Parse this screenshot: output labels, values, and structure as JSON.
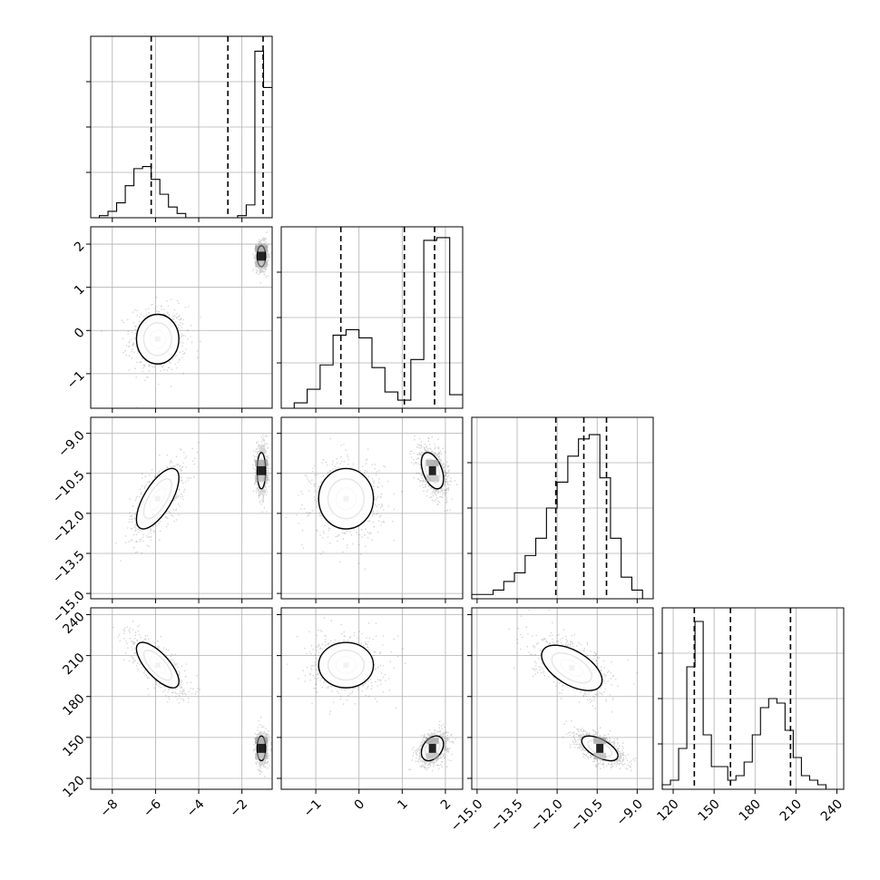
{
  "chart_data": {
    "type": "corner",
    "params": [
      {
        "xlim": [
          -9.0,
          -0.6
        ],
        "ticks": [
          -8,
          -6,
          -4,
          -2
        ],
        "tick_labels": [
          "−8",
          "−6",
          "−4",
          "−2"
        ]
      },
      {
        "xlim": [
          -1.8,
          2.4
        ],
        "ticks": [
          -1,
          0,
          1,
          2
        ],
        "tick_labels": [
          "−1",
          "0",
          "1",
          "2"
        ]
      },
      {
        "xlim": [
          -15.2,
          -8.4
        ],
        "ticks": [
          -15.0,
          -13.5,
          -12.0,
          -10.5,
          -9.0
        ],
        "tick_labels": [
          "−15.0",
          "−13.5",
          "−12.0",
          "−10.5",
          "−9.0"
        ]
      },
      {
        "xlim": [
          112,
          245
        ],
        "ticks": [
          120,
          150,
          180,
          210,
          240
        ],
        "tick_labels": [
          "120",
          "150",
          "180",
          "210",
          "240"
        ]
      }
    ],
    "y_ranges": [
      null,
      {
        "ylim": [
          -1.8,
          2.4
        ],
        "ticks": [
          -1,
          0,
          1,
          2
        ],
        "tick_labels": [
          "−1",
          "0",
          "1",
          "2"
        ]
      },
      {
        "ylim": [
          -15.2,
          -8.4
        ],
        "ticks": [
          -15.0,
          -13.5,
          -12.0,
          -10.5,
          -9.0
        ],
        "tick_labels": [
          "−15.0",
          "−13.5",
          "−12.0",
          "−10.5",
          "−9.0"
        ]
      },
      {
        "ylim": [
          112,
          245
        ],
        "ticks": [
          120,
          150,
          180,
          210,
          240
        ],
        "tick_labels": [
          "120",
          "150",
          "180",
          "210",
          "240"
        ]
      }
    ],
    "histograms": [
      {
        "bin_edges": [
          -9.0,
          -8.6,
          -8.2,
          -7.8,
          -7.4,
          -7.0,
          -6.6,
          -6.2,
          -5.8,
          -5.4,
          -5.0,
          -4.6,
          -4.2,
          -3.8,
          -3.4,
          -3.0,
          -2.6,
          -2.2,
          -1.8,
          -1.4,
          -1.0,
          -0.6
        ],
        "counts": [
          0,
          0.01,
          0.03,
          0.07,
          0.15,
          0.23,
          0.24,
          0.18,
          0.11,
          0.05,
          0.02,
          0,
          0,
          0,
          0,
          0,
          0,
          0.01,
          0.06,
          0.78,
          0.61
        ],
        "ymax": 0.85,
        "quantiles": [
          -6.2,
          -2.65,
          -1.02
        ]
      },
      {
        "bin_edges": [
          -1.8,
          -1.5,
          -1.2,
          -0.9,
          -0.6,
          -0.3,
          0.0,
          0.3,
          0.6,
          0.9,
          1.2,
          1.5,
          1.8,
          2.1,
          2.4
        ],
        "counts": [
          0.0,
          0.02,
          0.07,
          0.16,
          0.27,
          0.29,
          0.26,
          0.15,
          0.06,
          0.03,
          0.18,
          0.62,
          0.63,
          0.05
        ],
        "ymax": 0.67,
        "quantiles": [
          -0.42,
          1.05,
          1.75
        ]
      },
      {
        "bin_edges": [
          -15.2,
          -14.8,
          -14.4,
          -14.0,
          -13.6,
          -13.2,
          -12.8,
          -12.4,
          -12.0,
          -11.6,
          -11.2,
          -10.8,
          -10.4,
          -10.0,
          -9.6,
          -9.2,
          -8.8,
          -8.4
        ],
        "counts": [
          0.01,
          0.01,
          0.02,
          0.04,
          0.06,
          0.1,
          0.14,
          0.21,
          0.27,
          0.33,
          0.37,
          0.38,
          0.28,
          0.14,
          0.05,
          0.02,
          0.0
        ],
        "ymax": 0.42,
        "quantiles": [
          -12.05,
          -11.0,
          -10.15
        ]
      },
      {
        "bin_edges": [
          112,
          118,
          124,
          130,
          136,
          142,
          148,
          154,
          160,
          166,
          172,
          178,
          184,
          190,
          196,
          202,
          208,
          214,
          220,
          226,
          232,
          238,
          245
        ],
        "counts": [
          0.01,
          0.02,
          0.09,
          0.27,
          0.37,
          0.12,
          0.05,
          0.05,
          0.02,
          0.03,
          0.06,
          0.12,
          0.18,
          0.2,
          0.19,
          0.13,
          0.07,
          0.03,
          0.02,
          0.01,
          0.0,
          0.0
        ],
        "ymax": 0.4,
        "quantiles": [
          135.5,
          162,
          206
        ]
      }
    ],
    "hist_yticks": [
      0.25,
      0.5,
      0.75
    ],
    "pairs": [
      {
        "row": 1,
        "col": 0,
        "modes": [
          {
            "center": [
              -5.9,
              -0.2
            ],
            "sx": 0.65,
            "sy": 0.38,
            "rho": 0.0,
            "weight": 0.33
          },
          {
            "center": [
              -1.1,
              1.72
            ],
            "sx": 0.13,
            "sy": 0.16,
            "rho": 0.0,
            "weight": 0.67
          }
        ]
      },
      {
        "row": 2,
        "col": 0,
        "modes": [
          {
            "center": [
              -5.9,
              -11.45
            ],
            "sx": 0.65,
            "sy": 0.75,
            "rho": 0.68,
            "weight": 0.33
          },
          {
            "center": [
              -1.1,
              -10.4
            ],
            "sx": 0.13,
            "sy": 0.45,
            "rho": 0.0,
            "weight": 0.67
          }
        ]
      },
      {
        "row": 2,
        "col": 1,
        "modes": [
          {
            "center": [
              -0.3,
              -11.45
            ],
            "sx": 0.42,
            "sy": 0.75,
            "rho": 0.0,
            "weight": 0.33
          },
          {
            "center": [
              1.7,
              -10.4
            ],
            "sx": 0.17,
            "sy": 0.45,
            "rho": -0.45,
            "weight": 0.67
          }
        ]
      },
      {
        "row": 3,
        "col": 0,
        "modes": [
          {
            "center": [
              -5.9,
              203
            ],
            "sx": 0.65,
            "sy": 11,
            "rho": -0.72,
            "weight": 0.33
          },
          {
            "center": [
              -1.1,
              142
            ],
            "sx": 0.13,
            "sy": 6,
            "rho": 0.0,
            "weight": 0.67
          }
        ]
      },
      {
        "row": 3,
        "col": 1,
        "modes": [
          {
            "center": [
              -0.3,
              203
            ],
            "sx": 0.42,
            "sy": 11,
            "rho": 0.0,
            "weight": 0.33
          },
          {
            "center": [
              1.7,
              142
            ],
            "sx": 0.17,
            "sy": 6,
            "rho": 0.35,
            "weight": 0.67
          }
        ]
      },
      {
        "row": 3,
        "col": 2,
        "modes": [
          {
            "center": [
              -11.45,
              201
            ],
            "sx": 0.75,
            "sy": 11,
            "rho": -0.55,
            "weight": 0.33
          },
          {
            "center": [
              -10.4,
              142
            ],
            "sx": 0.45,
            "sy": 6,
            "rho": -0.6,
            "weight": 0.67
          }
        ]
      }
    ],
    "grid": true,
    "colors": {
      "line": "#000000",
      "grid": "#b0b0b0",
      "points": "#000000"
    }
  }
}
